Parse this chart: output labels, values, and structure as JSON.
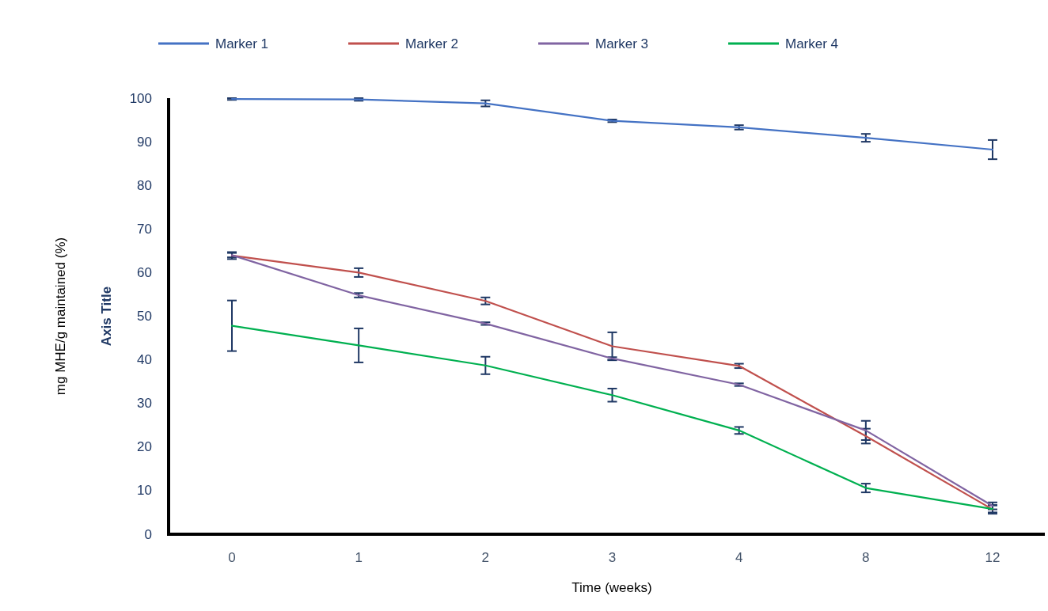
{
  "chart_data": {
    "type": "line",
    "categories": [
      "0",
      "1",
      "2",
      "3",
      "4",
      "8",
      "12"
    ],
    "xlabel": "Time (weeks)",
    "ylabel": "mg MHE/g maintained (%)",
    "annotations": [
      "Axis Title"
    ],
    "ylim": [
      0,
      100
    ],
    "yticks": [
      0,
      10,
      20,
      30,
      40,
      50,
      60,
      70,
      80,
      90,
      100
    ],
    "grid": false,
    "legend": "top",
    "marker": "none",
    "line_style": "solid",
    "series": [
      {
        "name": "Marker 1",
        "color": "#4472c4",
        "values": [
          99.8,
          99.7,
          98.8,
          94.8,
          93.3,
          90.9,
          88.2
        ],
        "errors": [
          0.2,
          0.3,
          0.7,
          0.3,
          0.5,
          0.9,
          2.2
        ]
      },
      {
        "name": "Marker 2",
        "color": "#c0504d",
        "values": [
          63.9,
          60.0,
          53.5,
          43.1,
          38.6,
          22.5,
          5.7
        ],
        "errors": [
          0.8,
          1.0,
          0.8,
          3.2,
          0.5,
          1.7,
          1.0
        ]
      },
      {
        "name": "Marker 3",
        "color": "#8064a2",
        "values": [
          64.0,
          54.8,
          48.3,
          40.3,
          34.3,
          23.8,
          6.5
        ],
        "errors": [
          0.5,
          0.5,
          0.3,
          0.3,
          0.3,
          2.2,
          0.8
        ]
      },
      {
        "name": "Marker 4",
        "color": "#00b050",
        "values": [
          47.8,
          43.3,
          38.7,
          31.9,
          23.8,
          10.6,
          5.8
        ],
        "errors": [
          5.8,
          3.9,
          2.0,
          1.5,
          0.8,
          1.0,
          0.8
        ]
      }
    ]
  }
}
